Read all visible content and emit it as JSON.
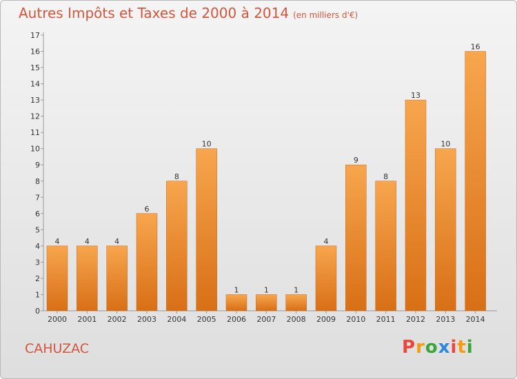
{
  "title": "Autres Impôts et Taxes de 2000 à 2014",
  "unit": "(en milliers d'€)",
  "place": "CAHUZAC",
  "logo": [
    "P",
    "r",
    "o",
    "x",
    "i",
    "t",
    "i"
  ],
  "logo_colors": [
    "#e8493a",
    "#f39c12",
    "#3aa63a",
    "#2e86de",
    "#e8493a",
    "#f39c12",
    "#3aa63a"
  ],
  "chart_data": {
    "type": "bar",
    "categories": [
      "2000",
      "2001",
      "2002",
      "2003",
      "2004",
      "2005",
      "2006",
      "2007",
      "2008",
      "2009",
      "2010",
      "2011",
      "2012",
      "2013",
      "2014"
    ],
    "values": [
      4,
      4,
      4,
      6,
      8,
      10,
      1,
      1,
      1,
      4,
      9,
      8,
      13,
      10,
      16
    ],
    "ylim": [
      0,
      17
    ],
    "yticks": [
      "0",
      "1",
      "2",
      "3",
      "4",
      "5",
      "6",
      "7",
      "8",
      "9",
      "10",
      "11",
      "12",
      "13",
      "14",
      "15",
      "16",
      "17"
    ],
    "grid": false,
    "bar_color_top": "#f7a64e",
    "bar_color_bottom": "#d86f16"
  }
}
